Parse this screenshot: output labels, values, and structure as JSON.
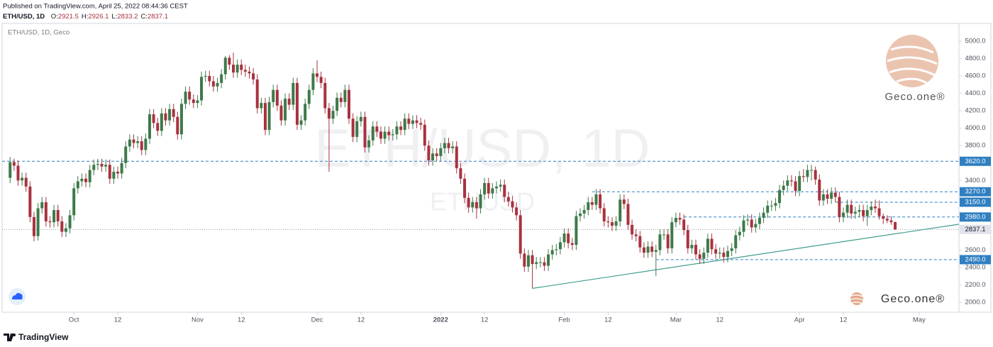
{
  "header": {
    "published": "Published on TradingView.com, April 25, 2022 08:44:36 CEST",
    "symbol": "ETH/USD, 1D",
    "ohlc_labels": [
      "O:",
      "H:",
      "L:",
      "C:"
    ]
  },
  "brand": {
    "logo_text": "Geco.one®",
    "footer": "TradingView"
  },
  "chart_data": {
    "type": "candlestick",
    "title": "ETH/USD, 1D, Geco",
    "watermark": "ETH/USD, 1D",
    "watermark_sub": "ETHUSD",
    "up_color": "#3d7a49",
    "down_color": "#a8323f",
    "ylim": [
      1886,
      5204
    ],
    "xlim": [
      "2021-09-13",
      "2022-05-11"
    ],
    "yticks": [
      {
        "value": 2000,
        "label": "2000.0"
      },
      {
        "value": 2200,
        "label": "2200.0"
      },
      {
        "value": 2400,
        "label": "2400.0"
      },
      {
        "value": 2600,
        "label": "2600.0"
      },
      {
        "value": 3400,
        "label": "3400.0"
      },
      {
        "value": 3800,
        "label": "3800.0"
      },
      {
        "value": 4000,
        "label": "4000.0"
      },
      {
        "value": 4200,
        "label": "4200.0"
      },
      {
        "value": 4400,
        "label": "4400.0"
      },
      {
        "value": 4600,
        "label": "4600.0"
      },
      {
        "value": 4800,
        "label": "4800.0"
      },
      {
        "value": 5000,
        "label": "5000.0"
      }
    ],
    "xticks": [
      {
        "value": "2021-10-01",
        "label": "Oct"
      },
      {
        "value": "2021-10-12",
        "label": "12"
      },
      {
        "value": "2021-11-01",
        "label": "Nov"
      },
      {
        "value": "2021-11-12",
        "label": "12"
      },
      {
        "value": "2021-12-01",
        "label": "Dec"
      },
      {
        "value": "2021-12-12",
        "label": "12"
      },
      {
        "value": "2022-01-01",
        "label": "2022"
      },
      {
        "value": "2022-01-12",
        "label": "12"
      },
      {
        "value": "2022-02-01",
        "label": "Feb"
      },
      {
        "value": "2022-02-12",
        "label": "12"
      },
      {
        "value": "2022-03-01",
        "label": "Mar"
      },
      {
        "value": "2022-03-12",
        "label": "12"
      },
      {
        "value": "2022-04-01",
        "label": "Apr"
      },
      {
        "value": "2022-04-12",
        "label": "12"
      },
      {
        "value": "2022-05-01",
        "label": "May"
      }
    ],
    "level_color": "#2f7fc1",
    "levels": [
      {
        "value": 3620,
        "label": "3620.0",
        "start": "2021-09-13"
      },
      {
        "value": 3270,
        "label": "3270.0",
        "start": "2022-02-08"
      },
      {
        "value": 3150,
        "label": "3150.0",
        "start": "2022-04-10"
      },
      {
        "value": 2980,
        "label": "2980.0",
        "start": "2022-03-03"
      },
      {
        "value": 2490,
        "label": "2490.0",
        "start": "2022-02-24"
      }
    ],
    "trendline": {
      "color": "#3f9e8c",
      "x": [
        "2022-01-24",
        "2022-05-11"
      ],
      "values": [
        2160,
        2897
      ]
    },
    "x": [
      "2021-09-15",
      "2021-09-16",
      "2021-09-17",
      "2021-09-18",
      "2021-09-19",
      "2021-09-20",
      "2021-09-21",
      "2021-09-22",
      "2021-09-23",
      "2021-09-24",
      "2021-09-25",
      "2021-09-26",
      "2021-09-27",
      "2021-09-28",
      "2021-09-29",
      "2021-09-30",
      "2021-10-01",
      "2021-10-02",
      "2021-10-03",
      "2021-10-04",
      "2021-10-05",
      "2021-10-06",
      "2021-10-07",
      "2021-10-08",
      "2021-10-09",
      "2021-10-10",
      "2021-10-11",
      "2021-10-12",
      "2021-10-13",
      "2021-10-14",
      "2021-10-15",
      "2021-10-16",
      "2021-10-17",
      "2021-10-18",
      "2021-10-19",
      "2021-10-20",
      "2021-10-21",
      "2021-10-22",
      "2021-10-23",
      "2021-10-24",
      "2021-10-25",
      "2021-10-26",
      "2021-10-27",
      "2021-10-28",
      "2021-10-29",
      "2021-10-30",
      "2021-10-31",
      "2021-11-01",
      "2021-11-02",
      "2021-11-03",
      "2021-11-04",
      "2021-11-05",
      "2021-11-06",
      "2021-11-07",
      "2021-11-08",
      "2021-11-09",
      "2021-11-10",
      "2021-11-11",
      "2021-11-12",
      "2021-11-13",
      "2021-11-14",
      "2021-11-15",
      "2021-11-16",
      "2021-11-17",
      "2021-11-18",
      "2021-11-19",
      "2021-11-20",
      "2021-11-21",
      "2021-11-22",
      "2021-11-23",
      "2021-11-24",
      "2021-11-25",
      "2021-11-26",
      "2021-11-27",
      "2021-11-28",
      "2021-11-29",
      "2021-11-30",
      "2021-12-01",
      "2021-12-02",
      "2021-12-03",
      "2021-12-04",
      "2021-12-05",
      "2021-12-06",
      "2021-12-07",
      "2021-12-08",
      "2021-12-09",
      "2021-12-10",
      "2021-12-11",
      "2021-12-12",
      "2021-12-13",
      "2021-12-14",
      "2021-12-15",
      "2021-12-16",
      "2021-12-17",
      "2021-12-18",
      "2021-12-19",
      "2021-12-20",
      "2021-12-21",
      "2021-12-22",
      "2021-12-23",
      "2021-12-24",
      "2021-12-25",
      "2021-12-26",
      "2021-12-27",
      "2021-12-28",
      "2021-12-29",
      "2021-12-30",
      "2021-12-31",
      "2022-01-01",
      "2022-01-02",
      "2022-01-03",
      "2022-01-04",
      "2022-01-05",
      "2022-01-06",
      "2022-01-07",
      "2022-01-08",
      "2022-01-09",
      "2022-01-10",
      "2022-01-11",
      "2022-01-12",
      "2022-01-13",
      "2022-01-14",
      "2022-01-15",
      "2022-01-16",
      "2022-01-17",
      "2022-01-18",
      "2022-01-19",
      "2022-01-20",
      "2022-01-21",
      "2022-01-22",
      "2022-01-23",
      "2022-01-24",
      "2022-01-25",
      "2022-01-26",
      "2022-01-27",
      "2022-01-28",
      "2022-01-29",
      "2022-01-30",
      "2022-01-31",
      "2022-02-01",
      "2022-02-02",
      "2022-02-03",
      "2022-02-04",
      "2022-02-05",
      "2022-02-06",
      "2022-02-07",
      "2022-02-08",
      "2022-02-09",
      "2022-02-10",
      "2022-02-11",
      "2022-02-12",
      "2022-02-13",
      "2022-02-14",
      "2022-02-15",
      "2022-02-16",
      "2022-02-17",
      "2022-02-18",
      "2022-02-19",
      "2022-02-20",
      "2022-02-21",
      "2022-02-22",
      "2022-02-23",
      "2022-02-24",
      "2022-02-25",
      "2022-02-26",
      "2022-02-27",
      "2022-02-28",
      "2022-03-01",
      "2022-03-02",
      "2022-03-03",
      "2022-03-04",
      "2022-03-05",
      "2022-03-06",
      "2022-03-07",
      "2022-03-08",
      "2022-03-09",
      "2022-03-10",
      "2022-03-11",
      "2022-03-12",
      "2022-03-13",
      "2022-03-14",
      "2022-03-15",
      "2022-03-16",
      "2022-03-17",
      "2022-03-18",
      "2022-03-19",
      "2022-03-20",
      "2022-03-21",
      "2022-03-22",
      "2022-03-23",
      "2022-03-24",
      "2022-03-25",
      "2022-03-26",
      "2022-03-27",
      "2022-03-28",
      "2022-03-29",
      "2022-03-30",
      "2022-03-31",
      "2022-04-01",
      "2022-04-02",
      "2022-04-03",
      "2022-04-04",
      "2022-04-05",
      "2022-04-06",
      "2022-04-07",
      "2022-04-08",
      "2022-04-09",
      "2022-04-10",
      "2022-04-11",
      "2022-04-12",
      "2022-04-13",
      "2022-04-14",
      "2022-04-15",
      "2022-04-16",
      "2022-04-17",
      "2022-04-18",
      "2022-04-19",
      "2022-04-20",
      "2022-04-21",
      "2022-04-22",
      "2022-04-23",
      "2022-04-24",
      "2022-04-25"
    ],
    "open": [
      3430,
      3610,
      3570,
      3400,
      3430,
      3330,
      2980,
      2760,
      3080,
      3150,
      2930,
      2920,
      3060,
      2930,
      2810,
      2850,
      3000,
      3310,
      3390,
      3420,
      3380,
      3520,
      3580,
      3590,
      3560,
      3580,
      3420,
      3500,
      3480,
      3600,
      3790,
      3870,
      3830,
      3850,
      3750,
      3880,
      4160,
      4060,
      3970,
      4170,
      4090,
      4220,
      4130,
      3930,
      4280,
      4420,
      4330,
      4290,
      4320,
      4590,
      4600,
      4540,
      4480,
      4520,
      4620,
      4810,
      4730,
      4640,
      4730,
      4670,
      4650,
      4630,
      4560,
      4230,
      4290,
      3980,
      4300,
      4440,
      4260,
      4090,
      4340,
      4270,
      4520,
      4040,
      4090,
      4280,
      4440,
      4630,
      4590,
      4520,
      4230,
      4110,
      4200,
      4350,
      4300,
      4440,
      4110,
      3900,
      4080,
      4130,
      3780,
      3860,
      4020,
      3960,
      3880,
      3960,
      3920,
      3930,
      4020,
      3980,
      4110,
      4050,
      4090,
      4060,
      4040,
      3800,
      3630,
      3710,
      3680,
      3770,
      3830,
      3770,
      3790,
      3540,
      3420,
      3200,
      3090,
      3150,
      3080,
      3240,
      3370,
      3250,
      3310,
      3330,
      3350,
      3210,
      3160,
      3090,
      3000,
      2560,
      2410,
      2540,
      2440,
      2460,
      2460,
      2420,
      2550,
      2600,
      2610,
      2690,
      2790,
      2680,
      2660,
      2990,
      3020,
      3060,
      3150,
      3120,
      3240,
      3080,
      2930,
      2920,
      2880,
      2930,
      3180,
      3130,
      2890,
      2780,
      2760,
      2630,
      2570,
      2640,
      2580,
      2600,
      2780,
      2780,
      2620,
      2920,
      2970,
      2950,
      2830,
      2620,
      2660,
      2550,
      2500,
      2570,
      2730,
      2610,
      2560,
      2570,
      2520,
      2590,
      2620,
      2770,
      2810,
      2940,
      2950,
      2860,
      2900,
      2970,
      3030,
      3110,
      3110,
      3140,
      3290,
      3340,
      3400,
      3390,
      3280,
      3450,
      3440,
      3520,
      3520,
      3410,
      3170,
      3240,
      3190,
      3260,
      3210,
      2980,
      3030,
      3120,
      3020,
      3040,
      3060,
      2990,
      3060,
      3100,
      3080,
      2990,
      2960,
      2940,
      2921.5
    ],
    "high": [
      3670,
      3650,
      3630,
      3490,
      3490,
      3390,
      3040,
      3140,
      3210,
      3210,
      2990,
      3120,
      3120,
      2990,
      2910,
      3060,
      3370,
      3450,
      3480,
      3480,
      3580,
      3640,
      3650,
      3650,
      3640,
      3640,
      3560,
      3560,
      3660,
      3850,
      3930,
      3930,
      3910,
      3910,
      3940,
      4220,
      4220,
      4120,
      4230,
      4230,
      4280,
      4280,
      4190,
      4340,
      4480,
      4480,
      4390,
      4380,
      4650,
      4660,
      4660,
      4600,
      4580,
      4680,
      4830,
      4840,
      4868,
      4790,
      4790,
      4730,
      4710,
      4690,
      4620,
      4350,
      4350,
      4360,
      4500,
      4500,
      4320,
      4400,
      4400,
      4580,
      4580,
      4150,
      4340,
      4500,
      4690,
      4780,
      4650,
      4580,
      4290,
      4260,
      4410,
      4410,
      4500,
      4500,
      4170,
      4140,
      4190,
      4190,
      3920,
      4080,
      4080,
      4020,
      4020,
      4020,
      3990,
      4080,
      4080,
      4170,
      4170,
      4150,
      4150,
      4120,
      4100,
      3860,
      3770,
      3770,
      3830,
      3890,
      3890,
      3850,
      3850,
      3600,
      3480,
      3260,
      3210,
      3210,
      3300,
      3430,
      3430,
      3370,
      3390,
      3410,
      3410,
      3270,
      3220,
      3150,
      3060,
      2620,
      2600,
      2600,
      2520,
      2520,
      2520,
      2610,
      2660,
      2670,
      2750,
      2850,
      2850,
      2740,
      3050,
      3080,
      3120,
      3210,
      3210,
      3300,
      3300,
      3140,
      2990,
      2980,
      2990,
      3240,
      3240,
      3190,
      2950,
      2840,
      2820,
      2690,
      2700,
      2700,
      2660,
      2840,
      2840,
      2840,
      2980,
      3030,
      3030,
      3010,
      2890,
      2720,
      2720,
      2610,
      2630,
      2790,
      2790,
      2670,
      2630,
      2630,
      2650,
      2680,
      2830,
      2870,
      3000,
      3010,
      3010,
      2960,
      3030,
      3090,
      3170,
      3170,
      3200,
      3350,
      3400,
      3460,
      3460,
      3450,
      3510,
      3530,
      3580,
      3580,
      3560,
      3470,
      3300,
      3300,
      3320,
      3320,
      3270,
      3090,
      3180,
      3180,
      3100,
      3120,
      3120,
      3120,
      3160,
      3180,
      3170,
      3020,
      3000,
      2990,
      2926.1
    ],
    "low": [
      3370,
      3510,
      3340,
      3340,
      3270,
      2920,
      2700,
      2710,
      3020,
      2870,
      2860,
      2860,
      2870,
      2750,
      2750,
      2790,
      2940,
      3250,
      3330,
      3320,
      3320,
      3460,
      3520,
      3500,
      3500,
      3360,
      3360,
      3420,
      3420,
      3540,
      3730,
      3770,
      3770,
      3690,
      3690,
      3820,
      4000,
      3910,
      3910,
      4030,
      4030,
      4070,
      3870,
      3870,
      4220,
      4270,
      4230,
      4230,
      4260,
      4530,
      4480,
      4420,
      4420,
      4460,
      4560,
      4670,
      4580,
      4580,
      4610,
      4590,
      4570,
      4500,
      4170,
      4170,
      3920,
      3920,
      4240,
      4200,
      4030,
      4030,
      4210,
      4210,
      3980,
      3980,
      4030,
      4220,
      4380,
      4530,
      4460,
      4170,
      3500,
      4050,
      4140,
      4240,
      4240,
      4050,
      3840,
      3840,
      4020,
      3720,
      3720,
      3800,
      3900,
      3820,
      3820,
      3860,
      3860,
      3870,
      3920,
      3920,
      3990,
      3990,
      4000,
      3980,
      3740,
      3570,
      3570,
      3620,
      3620,
      3710,
      3710,
      3710,
      3480,
      3360,
      3140,
      3030,
      3030,
      2960,
      3020,
      3180,
      3190,
      3190,
      3250,
      3270,
      3150,
      3100,
      3030,
      2940,
      2500,
      2350,
      2350,
      2160,
      2380,
      2400,
      2360,
      2360,
      2490,
      2540,
      2550,
      2630,
      2620,
      2600,
      2600,
      2930,
      2960,
      3000,
      3060,
      3060,
      3020,
      2870,
      2860,
      2820,
      2820,
      2870,
      3070,
      2830,
      2720,
      2700,
      2570,
      2510,
      2510,
      2520,
      2300,
      2540,
      2720,
      2560,
      2560,
      2860,
      2890,
      2770,
      2560,
      2560,
      2490,
      2440,
      2440,
      2510,
      2550,
      2500,
      2500,
      2460,
      2460,
      2530,
      2560,
      2710,
      2750,
      2880,
      2800,
      2800,
      2840,
      2910,
      2970,
      3050,
      3050,
      3080,
      3230,
      3280,
      3330,
      3220,
      3220,
      3380,
      3380,
      3400,
      3350,
      3110,
      3110,
      3130,
      3130,
      3150,
      2920,
      2920,
      2970,
      2960,
      2960,
      2980,
      2930,
      2880,
      3000,
      3030,
      2950,
      2900,
      2910,
      2890,
      2833.2
    ],
    "close": [
      3610,
      3570,
      3400,
      3430,
      3330,
      2980,
      2760,
      3080,
      3150,
      2930,
      2920,
      3060,
      2930,
      2810,
      2850,
      3000,
      3310,
      3390,
      3420,
      3380,
      3520,
      3580,
      3590,
      3560,
      3580,
      3420,
      3500,
      3480,
      3600,
      3790,
      3870,
      3830,
      3850,
      3750,
      3880,
      4160,
      4060,
      3970,
      4170,
      4090,
      4220,
      4130,
      3930,
      4280,
      4420,
      4330,
      4290,
      4320,
      4590,
      4600,
      4540,
      4480,
      4520,
      4620,
      4810,
      4730,
      4640,
      4730,
      4670,
      4650,
      4630,
      4560,
      4230,
      4290,
      3980,
      4300,
      4440,
      4260,
      4090,
      4340,
      4270,
      4520,
      4040,
      4090,
      4280,
      4440,
      4630,
      4590,
      4520,
      4230,
      4110,
      4200,
      4350,
      4300,
      4440,
      4110,
      3900,
      4080,
      4130,
      3780,
      3860,
      4020,
      3960,
      3880,
      3960,
      3920,
      3930,
      4020,
      3980,
      4110,
      4050,
      4090,
      4060,
      4040,
      3800,
      3630,
      3710,
      3680,
      3770,
      3830,
      3770,
      3790,
      3540,
      3420,
      3200,
      3090,
      3150,
      3080,
      3240,
      3370,
      3250,
      3310,
      3330,
      3350,
      3210,
      3160,
      3090,
      3000,
      2560,
      2410,
      2540,
      2440,
      2460,
      2460,
      2420,
      2550,
      2600,
      2610,
      2690,
      2790,
      2680,
      2660,
      2990,
      3020,
      3060,
      3150,
      3120,
      3240,
      3080,
      2930,
      2920,
      2880,
      2930,
      3180,
      3130,
      2890,
      2780,
      2760,
      2630,
      2570,
      2640,
      2580,
      2600,
      2780,
      2780,
      2620,
      2920,
      2970,
      2950,
      2830,
      2620,
      2660,
      2550,
      2500,
      2570,
      2730,
      2610,
      2560,
      2570,
      2520,
      2590,
      2620,
      2770,
      2810,
      2940,
      2950,
      2860,
      2900,
      2970,
      3030,
      3110,
      3110,
      3140,
      3290,
      3340,
      3400,
      3390,
      3280,
      3450,
      3440,
      3520,
      3520,
      3410,
      3170,
      3240,
      3190,
      3260,
      3210,
      2980,
      3030,
      3120,
      3020,
      3040,
      3060,
      2990,
      3060,
      3100,
      3080,
      2990,
      2960,
      2940,
      2920,
      2837.1
    ]
  }
}
